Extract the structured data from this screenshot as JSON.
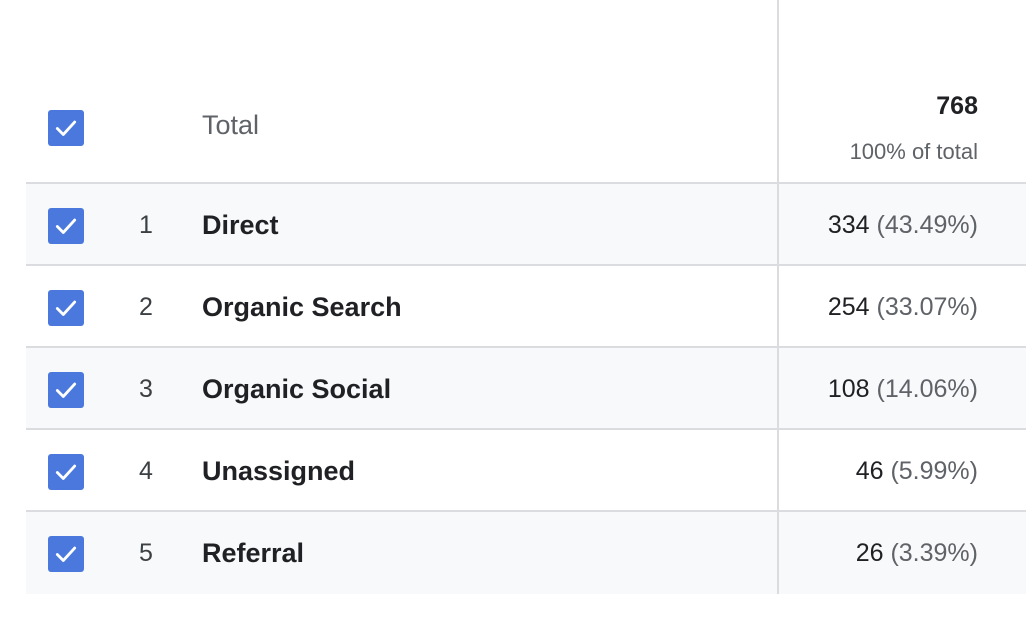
{
  "total": {
    "label": "Total",
    "value": "768",
    "percent_label": "100% of total",
    "checked": true
  },
  "rows": [
    {
      "rank": "1",
      "label": "Direct",
      "value": "334",
      "percent": "(43.49%)",
      "checked": true
    },
    {
      "rank": "2",
      "label": "Organic Search",
      "value": "254",
      "percent": "(33.07%)",
      "checked": true
    },
    {
      "rank": "3",
      "label": "Organic Social",
      "value": "108",
      "percent": "(14.06%)",
      "checked": true
    },
    {
      "rank": "4",
      "label": "Unassigned",
      "value": "46",
      "percent": "(5.99%)",
      "checked": true
    },
    {
      "rank": "5",
      "label": "Referral",
      "value": "26",
      "percent": "(3.39%)",
      "checked": true
    }
  ],
  "colors": {
    "checkbox": "#4a78dd",
    "row_shade": "#f8f9fa",
    "divider": "#dadce0"
  },
  "icons": {
    "checkbox": "checkmark-icon"
  }
}
